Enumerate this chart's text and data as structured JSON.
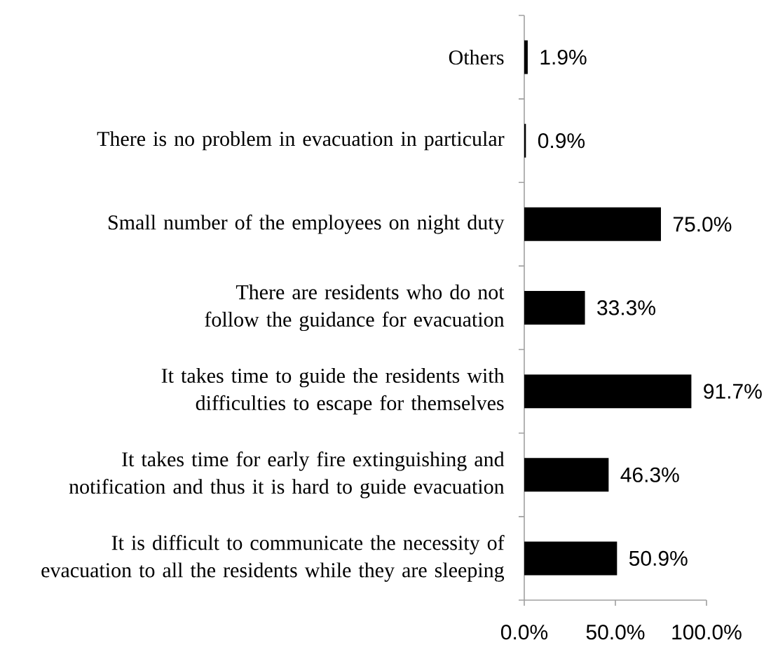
{
  "chart_data": {
    "type": "bar",
    "orientation": "horizontal",
    "categories": [
      "Others",
      "There is no problem in evacuation in particular",
      "Small number of the employees on night duty",
      "There are residents who do not follow the guidance for evacuation",
      "It takes time to guide the residents with difficulties to escape for themselves",
      "It takes time for early fire extinguishing and notification and thus it is hard to guide evacuation",
      "It is difficult to communicate the necessity of evacuation to all the residents while they are sleeping"
    ],
    "values": [
      1.9,
      0.9,
      75.0,
      33.3,
      91.7,
      46.3,
      50.9
    ],
    "value_labels": [
      "1.9%",
      "0.9%",
      "75.0%",
      "33.3%",
      "91.7%",
      "46.3%",
      "50.9%"
    ],
    "color": "#000000",
    "xlim": [
      0,
      100
    ],
    "xticks": [
      {
        "value": 0,
        "label": "0.0%"
      },
      {
        "value": 50,
        "label": "50.0%"
      },
      {
        "value": 100,
        "label": "100.0%"
      }
    ]
  }
}
